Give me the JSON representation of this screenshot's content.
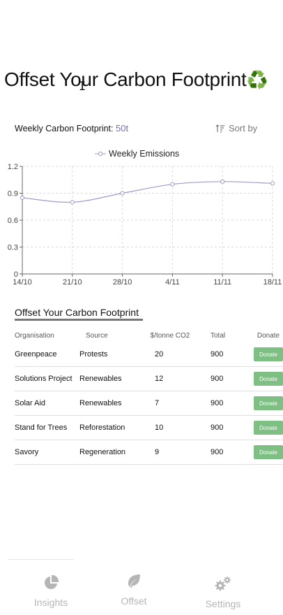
{
  "page": {
    "title": "Offset Your Carbon Footprint",
    "title_emoji": "♻️"
  },
  "weekly": {
    "label": "Weekly Carbon Footprint: ",
    "value": "50t"
  },
  "sort": {
    "label": "Sort by",
    "icon": "sort-icon"
  },
  "chart_data": {
    "type": "line",
    "x": [
      "14/10",
      "21/10",
      "28/10",
      "4/11",
      "11/11",
      "18/11"
    ],
    "series": [
      {
        "name": "Weekly Emissions",
        "values": [
          0.85,
          0.8,
          0.9,
          1.0,
          1.03,
          1.01
        ],
        "color": "#9b9bd0"
      }
    ],
    "yticks": [
      "0",
      "0.3",
      "0.6",
      "0.9",
      "1.2"
    ],
    "ylim": [
      0,
      1.2
    ],
    "grid": true,
    "legend": "top-center"
  },
  "offset": {
    "section_title": "Offset Your Carbon Footprint",
    "columns": [
      "Organisation",
      "Source",
      "$/tonne CO2",
      "Total",
      "Donate"
    ],
    "rows": [
      {
        "org": "Greenpeace",
        "source": "Protests",
        "price": "20",
        "total": "900",
        "action": "Donate"
      },
      {
        "org": "Solutions Project",
        "source": "Renewables",
        "price": "12",
        "total": "900",
        "action": "Donate"
      },
      {
        "org": "Solar Aid",
        "source": "Renewables",
        "price": "7",
        "total": "900",
        "action": "Donate"
      },
      {
        "org": "Stand for Trees",
        "source": "Reforestation",
        "price": "10",
        "total": "900",
        "action": "Donate"
      },
      {
        "org": "Savory",
        "source": "Regeneration",
        "price": "9",
        "total": "900",
        "action": "Donate"
      }
    ]
  },
  "nav": {
    "items": [
      {
        "label": "Insights",
        "icon": "pie-chart-icon"
      },
      {
        "label": "Offset",
        "icon": "leaf-icon"
      },
      {
        "label": "Settings",
        "icon": "gears-icon"
      }
    ]
  },
  "colors": {
    "accent": "#6f6fb8",
    "donate": "#7ebf83",
    "nav_inactive": "#b5b5b5"
  }
}
